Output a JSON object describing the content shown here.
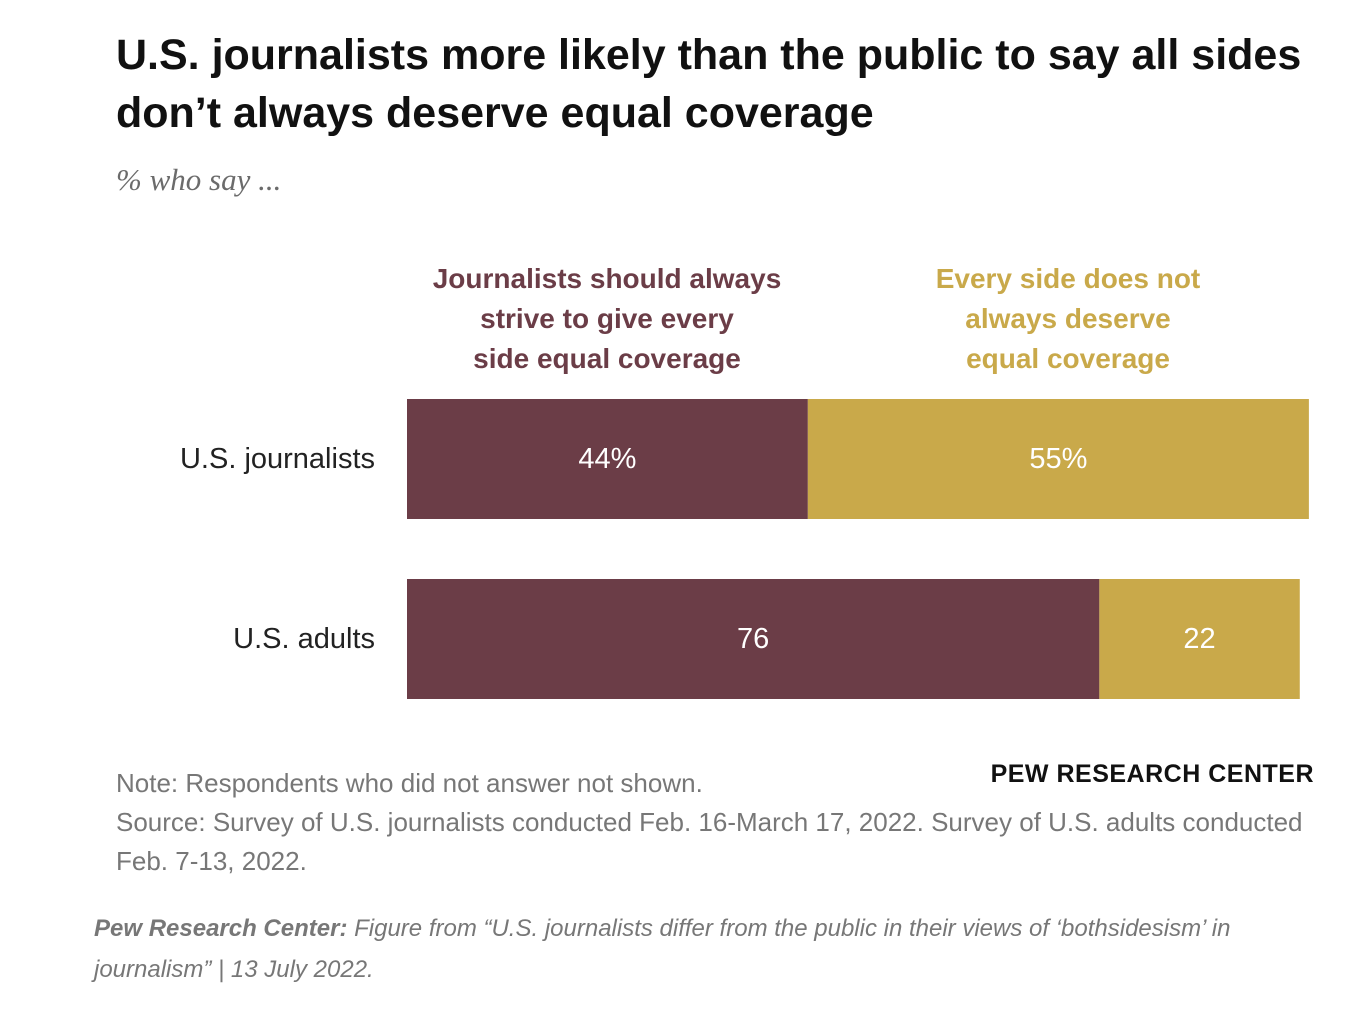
{
  "chart_data": {
    "type": "bar",
    "stacked": true,
    "orientation": "horizontal",
    "title": "U.S. journalists more likely than the public to say all sides don’t always deserve equal coverage",
    "subtitle": "% who say ...",
    "categories": [
      "U.S. journalists",
      "U.S. adults"
    ],
    "series": [
      {
        "name": "Journalists should always strive to give every side equal coverage",
        "values": [
          44,
          76
        ],
        "labels": [
          "44%",
          "76"
        ],
        "color": "#6b3d47"
      },
      {
        "name": "Every side does not always deserve equal coverage",
        "values": [
          55,
          22
        ],
        "labels": [
          "55%",
          "22"
        ],
        "color": "#c9a94a"
      }
    ],
    "xlim": [
      0,
      100
    ],
    "grid": false,
    "legend_position": "top"
  },
  "legend_lines": {
    "a": [
      "Journalists should always",
      "strive to give every",
      "side equal coverage"
    ],
    "b": [
      "Every side does not",
      "always deserve",
      "equal coverage"
    ]
  },
  "note": "Note: Respondents who did not answer not shown.",
  "source": "Source: Survey of U.S. journalists conducted Feb. 16-March 17, 2022. Survey of U.S. adults conducted Feb. 7-13, 2022.",
  "brand": "PEW RESEARCH CENTER",
  "caption": {
    "org": "Pew Research Center:",
    "text": " Figure from “U.S. journalists differ from the public in their views of ‘bothsidesism’ in journalism” | 13 July 2022."
  },
  "colors": {
    "label_text": "#ffffff",
    "category_text": "#222222"
  }
}
